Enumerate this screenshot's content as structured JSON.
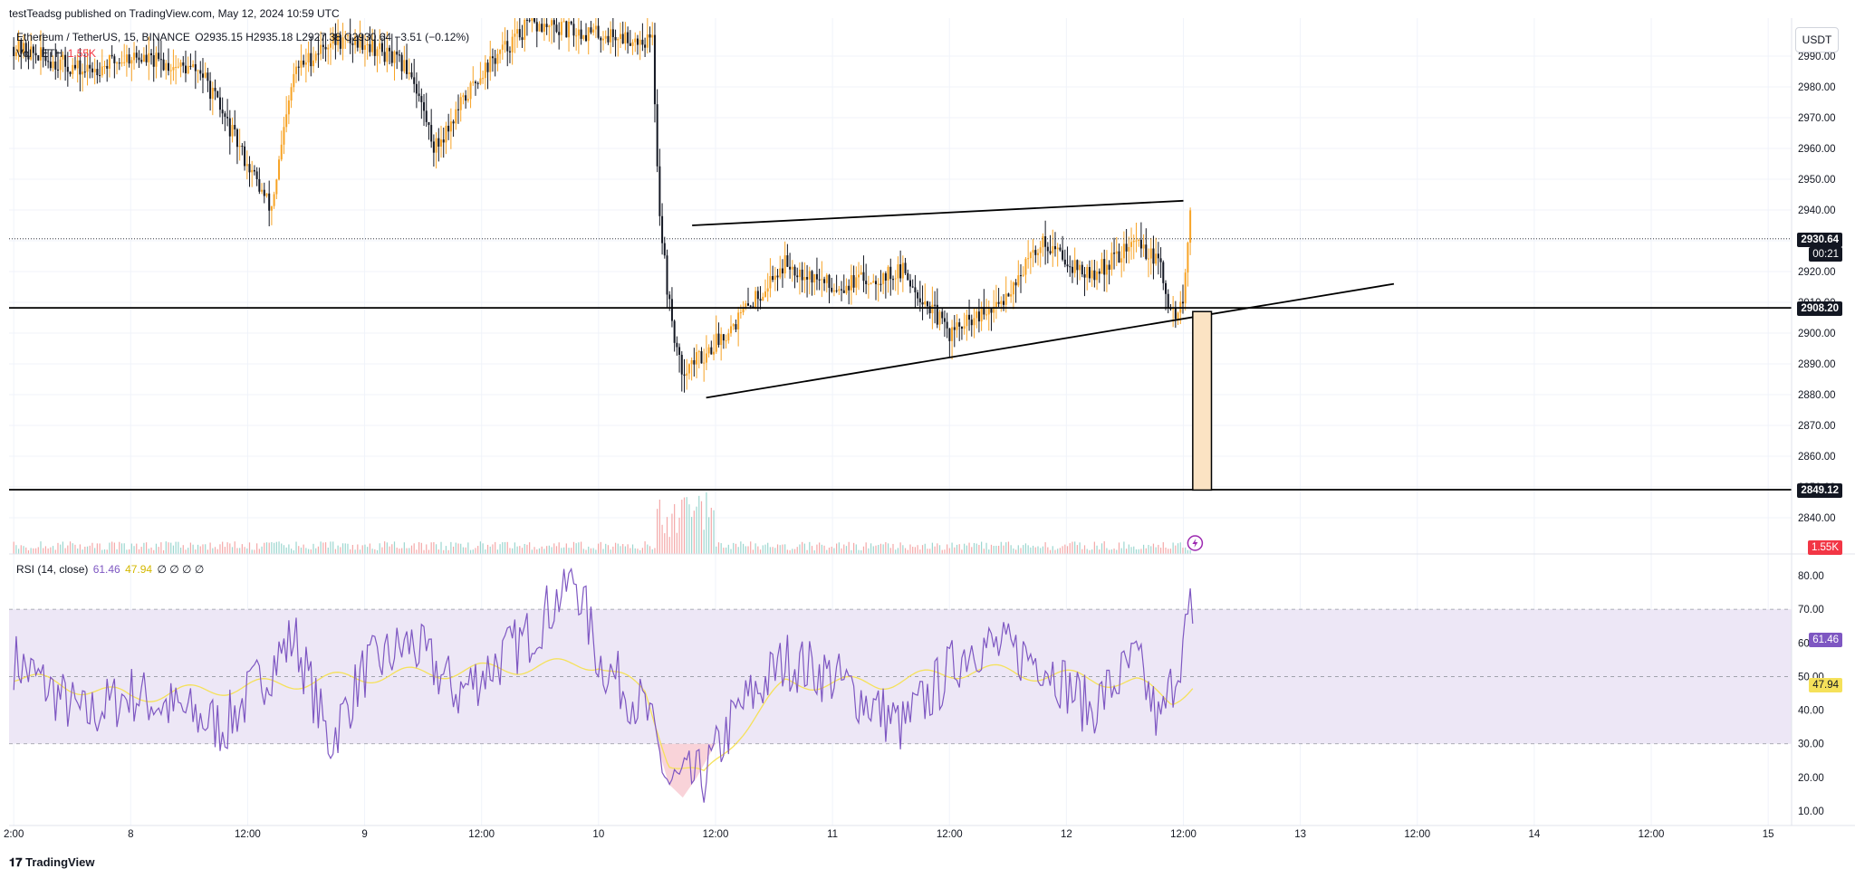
{
  "header": {
    "published": "testTeadsg published on TradingView.com, May 12, 2024 10:59 UTC",
    "symbol_line": "Ethereum / TetherUS, 15, BINANCE",
    "ohlc": "O2935.15 H2935.18 L2927.38 C2930.64 −3.51 (−0.12%)",
    "volume_label": "Vol · ETH",
    "volume_value": "1.55K",
    "currency": "USDT"
  },
  "rsi_header": {
    "label": "RSI (14, close)",
    "rsi_value": "61.46",
    "ma_value": "47.94",
    "extras": "∅ ∅ ∅ ∅"
  },
  "price_badges": {
    "last_price": "2930.64",
    "countdown": "00:21",
    "level_high": "2908.20",
    "level_low": "2849.12",
    "volume": "1.55K",
    "rsi": "61.46",
    "rsi_ma": "47.94"
  },
  "colors": {
    "up": "#f7a325",
    "down": "#131722",
    "rsi_line": "#7e57c2",
    "rsi_ma": "#f5e15a",
    "rsi_band": "#ede7f6",
    "vol_up": "#9bd6cf",
    "vol_down": "#f4a8a8",
    "target_box": "#fbe3c3"
  },
  "footer": {
    "brand": "TradingView"
  },
  "chart_data": [
    {
      "type": "candlestick",
      "title": "Ethereum / TetherUS, 15, BINANCE",
      "y_axis_ticks": [
        2840,
        2850,
        2860,
        2870,
        2880,
        2890,
        2900,
        2910,
        2920,
        2930,
        2940,
        2950,
        2960,
        2970,
        2980,
        2990
      ],
      "ylim": [
        2832,
        2999
      ],
      "x_tick_labels": [
        "2:00",
        "8",
        "12:00",
        "9",
        "12:00",
        "10",
        "12:00",
        "11",
        "12:00",
        "12",
        "12:00",
        "13",
        "12:00",
        "14",
        "12:00",
        "15"
      ],
      "last_price": 2930.64,
      "horizontal_levels": [
        2908.2,
        2849.12
      ],
      "wedge_upper": [
        [
          10.4,
          2935
        ],
        [
          12.5,
          2943
        ]
      ],
      "wedge_lower": [
        [
          10.46,
          2879
        ],
        [
          13.4,
          2916
        ]
      ],
      "projection_box": [
        [
          12.54,
          2907
        ],
        [
          12.62,
          2849
        ]
      ],
      "price_path_approx": [
        [
          7.5,
          2993
        ],
        [
          7.8,
          2985
        ],
        [
          8.0,
          2990
        ],
        [
          8.3,
          2985
        ],
        [
          8.5,
          2955
        ],
        [
          8.6,
          2940
        ],
        [
          8.7,
          2985
        ],
        [
          8.85,
          2995
        ],
        [
          9.0,
          2995
        ],
        [
          9.2,
          2985
        ],
        [
          9.3,
          2960
        ],
        [
          9.5,
          2985
        ],
        [
          9.7,
          3000
        ],
        [
          10.23,
          2995
        ],
        [
          10.26,
          2940
        ],
        [
          10.3,
          2910
        ],
        [
          10.35,
          2888
        ],
        [
          10.45,
          2893
        ],
        [
          10.6,
          2905
        ],
        [
          10.8,
          2923
        ],
        [
          11.0,
          2915
        ],
        [
          11.3,
          2920
        ],
        [
          11.5,
          2900
        ],
        [
          11.7,
          2908
        ],
        [
          11.9,
          2930
        ],
        [
          12.1,
          2918
        ],
        [
          12.3,
          2930
        ],
        [
          12.4,
          2922
        ],
        [
          12.45,
          2905
        ],
        [
          12.5,
          2910
        ],
        [
          12.53,
          2940
        ],
        [
          12.55,
          2930.64
        ]
      ],
      "volume_last": 1.55
    },
    {
      "type": "line",
      "title": "RSI (14, close)",
      "y_axis_ticks": [
        10,
        20,
        30,
        40,
        50,
        60,
        70,
        80
      ],
      "ylim": [
        5,
        85
      ],
      "band": [
        30,
        70
      ],
      "midline": 50,
      "series": [
        {
          "name": "RSI",
          "values_approx": [
            [
              7.5,
              55
            ],
            [
              7.8,
              38
            ],
            [
              8.0,
              45
            ],
            [
              8.4,
              35
            ],
            [
              8.7,
              62
            ],
            [
              8.85,
              30
            ],
            [
              9.0,
              52
            ],
            [
              9.2,
              60
            ],
            [
              9.4,
              45
            ],
            [
              9.7,
              62
            ],
            [
              9.9,
              80
            ],
            [
              10.0,
              55
            ],
            [
              10.2,
              40
            ],
            [
              10.3,
              18
            ],
            [
              10.45,
              20
            ],
            [
              10.6,
              40
            ],
            [
              10.8,
              55
            ],
            [
              11.0,
              50
            ],
            [
              11.3,
              35
            ],
            [
              11.6,
              60
            ],
            [
              11.9,
              55
            ],
            [
              12.1,
              40
            ],
            [
              12.3,
              55
            ],
            [
              12.4,
              35
            ],
            [
              12.5,
              60
            ],
            [
              12.53,
              70
            ],
            [
              12.55,
              61.46
            ]
          ]
        },
        {
          "name": "RSI-based MA",
          "values_approx": [
            [
              7.5,
              50
            ],
            [
              8.0,
              44
            ],
            [
              8.5,
              47
            ],
            [
              9.0,
              50
            ],
            [
              9.5,
              52
            ],
            [
              10.0,
              54
            ],
            [
              10.2,
              45
            ],
            [
              10.3,
              25
            ],
            [
              10.45,
              20
            ],
            [
              10.6,
              33
            ],
            [
              10.8,
              48
            ],
            [
              11.2,
              48
            ],
            [
              11.6,
              52
            ],
            [
              12.0,
              50
            ],
            [
              12.3,
              48
            ],
            [
              12.45,
              43
            ],
            [
              12.55,
              47.94
            ]
          ]
        }
      ],
      "last_value": 61.46,
      "last_ma": 47.94
    }
  ]
}
